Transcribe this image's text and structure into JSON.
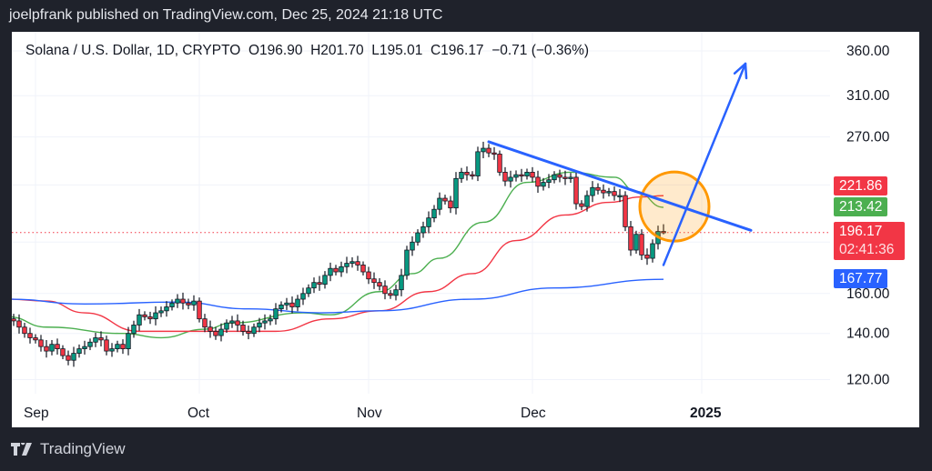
{
  "header": {
    "published": "joelpfrank published on TradingView.com, Dec 25, 2024 21:18 UTC"
  },
  "legend": {
    "symbol": "Solana / U.S. Dollar, 1D, CRYPTO",
    "open": "O196.90",
    "high": "H201.70",
    "low": "L195.01",
    "close": "C196.17",
    "change": "−0.71 (−0.36%)"
  },
  "footer": {
    "brand": "TradingView",
    "logo_icon": "tradingview-logo-icon"
  },
  "chart_data": {
    "type": "candlestick",
    "title": "Solana / U.S. Dollar, 1D, CRYPTO",
    "y_scale": "log",
    "ylim": [
      102,
      414
    ],
    "grid": true,
    "y_ticks": [
      360,
      310,
      270,
      230,
      190,
      160,
      140,
      120
    ],
    "y_tick_labels": [
      "360.00",
      "310.00",
      "270.00",
      "",
      "",
      "160.00",
      "140.00",
      "120.00"
    ],
    "x_ticks": [
      {
        "date": "2024-09-01",
        "label": "Sep"
      },
      {
        "date": "2024-10-01",
        "label": "Oct"
      },
      {
        "date": "2024-11-01",
        "label": "Nov"
      },
      {
        "date": "2024-12-01",
        "label": "Dec"
      },
      {
        "date": "2025-01-01",
        "label": "2025"
      }
    ],
    "colors": {
      "up": "#089981",
      "down": "#f23645",
      "ma_fast": "#4caf50",
      "ma_mid": "#f23645",
      "ma_slow": "#2962ff",
      "drawing": "#2962ff",
      "highlight": "#ff9800"
    },
    "closes": [
      [
        "2024-08-27",
        147
      ],
      [
        "2024-08-28",
        146
      ],
      [
        "2024-08-29",
        143
      ],
      [
        "2024-08-30",
        140
      ],
      [
        "2024-08-31",
        138
      ],
      [
        "2024-09-01",
        137
      ],
      [
        "2024-09-02",
        134
      ],
      [
        "2024-09-03",
        132
      ],
      [
        "2024-09-04",
        135
      ],
      [
        "2024-09-05",
        133
      ],
      [
        "2024-09-06",
        130
      ],
      [
        "2024-09-07",
        128
      ],
      [
        "2024-09-08",
        131
      ],
      [
        "2024-09-09",
        133
      ],
      [
        "2024-09-10",
        134
      ],
      [
        "2024-09-11",
        136
      ],
      [
        "2024-09-12",
        138
      ],
      [
        "2024-09-13",
        137
      ],
      [
        "2024-09-14",
        132
      ],
      [
        "2024-09-15",
        133
      ],
      [
        "2024-09-16",
        135
      ],
      [
        "2024-09-17",
        133
      ],
      [
        "2024-09-18",
        140
      ],
      [
        "2024-09-19",
        144
      ],
      [
        "2024-09-20",
        149
      ],
      [
        "2024-09-21",
        148
      ],
      [
        "2024-09-22",
        147
      ],
      [
        "2024-09-23",
        150
      ],
      [
        "2024-09-24",
        151
      ],
      [
        "2024-09-25",
        153
      ],
      [
        "2024-09-26",
        155
      ],
      [
        "2024-09-27",
        157
      ],
      [
        "2024-09-28",
        155
      ],
      [
        "2024-09-29",
        154
      ],
      [
        "2024-09-30",
        156
      ],
      [
        "2024-10-01",
        147
      ],
      [
        "2024-10-02",
        143
      ],
      [
        "2024-10-03",
        141
      ],
      [
        "2024-10-04",
        139
      ],
      [
        "2024-10-05",
        142
      ],
      [
        "2024-10-06",
        145
      ],
      [
        "2024-10-07",
        146
      ],
      [
        "2024-10-08",
        144
      ],
      [
        "2024-10-09",
        141
      ],
      [
        "2024-10-10",
        140
      ],
      [
        "2024-10-11",
        143
      ],
      [
        "2024-10-12",
        145
      ],
      [
        "2024-10-13",
        146
      ],
      [
        "2024-10-14",
        147
      ],
      [
        "2024-10-15",
        152
      ],
      [
        "2024-10-16",
        154
      ],
      [
        "2024-10-17",
        155
      ],
      [
        "2024-10-18",
        153
      ],
      [
        "2024-10-19",
        157
      ],
      [
        "2024-10-20",
        160
      ],
      [
        "2024-10-21",
        163
      ],
      [
        "2024-10-22",
        166
      ],
      [
        "2024-10-23",
        165
      ],
      [
        "2024-10-24",
        170
      ],
      [
        "2024-10-25",
        174
      ],
      [
        "2024-10-26",
        172
      ],
      [
        "2024-10-27",
        175
      ],
      [
        "2024-10-28",
        177
      ],
      [
        "2024-10-29",
        178
      ],
      [
        "2024-10-30",
        176
      ],
      [
        "2024-10-31",
        172
      ],
      [
        "2024-11-01",
        168
      ],
      [
        "2024-11-02",
        166
      ],
      [
        "2024-11-03",
        164
      ],
      [
        "2024-11-04",
        160
      ],
      [
        "2024-11-05",
        159
      ],
      [
        "2024-11-06",
        162
      ],
      [
        "2024-11-07",
        170
      ],
      [
        "2024-11-08",
        185
      ],
      [
        "2024-11-09",
        190
      ],
      [
        "2024-11-10",
        196
      ],
      [
        "2024-11-11",
        200
      ],
      [
        "2024-11-12",
        206
      ],
      [
        "2024-11-13",
        212
      ],
      [
        "2024-11-14",
        220
      ],
      [
        "2024-11-15",
        218
      ],
      [
        "2024-11-16",
        213
      ],
      [
        "2024-11-17",
        235
      ],
      [
        "2024-11-18",
        240
      ],
      [
        "2024-11-19",
        238
      ],
      [
        "2024-11-20",
        237
      ],
      [
        "2024-11-21",
        257
      ],
      [
        "2024-11-22",
        260
      ],
      [
        "2024-11-23",
        256
      ],
      [
        "2024-11-24",
        255
      ],
      [
        "2024-11-25",
        240
      ],
      [
        "2024-11-26",
        233
      ],
      [
        "2024-11-27",
        236
      ],
      [
        "2024-11-28",
        238
      ],
      [
        "2024-11-29",
        237
      ],
      [
        "2024-11-30",
        240
      ],
      [
        "2024-12-01",
        236
      ],
      [
        "2024-12-02",
        229
      ],
      [
        "2024-12-03",
        232
      ],
      [
        "2024-12-04",
        234
      ],
      [
        "2024-12-05",
        238
      ],
      [
        "2024-12-06",
        236
      ],
      [
        "2024-12-07",
        235
      ],
      [
        "2024-12-08",
        236
      ],
      [
        "2024-12-09",
        216
      ],
      [
        "2024-12-10",
        214
      ],
      [
        "2024-12-11",
        222
      ],
      [
        "2024-12-12",
        228
      ],
      [
        "2024-12-13",
        226
      ],
      [
        "2024-12-14",
        224
      ],
      [
        "2024-12-15",
        225
      ],
      [
        "2024-12-16",
        222
      ],
      [
        "2024-12-17",
        222
      ],
      [
        "2024-12-18",
        200
      ],
      [
        "2024-12-19",
        185
      ],
      [
        "2024-12-20",
        195
      ],
      [
        "2024-12-21",
        182
      ],
      [
        "2024-12-22",
        180
      ],
      [
        "2024-12-23",
        189
      ],
      [
        "2024-12-24",
        196.9
      ],
      [
        "2024-12-25",
        196.17
      ]
    ],
    "last_candle": {
      "date": "2024-12-25",
      "open": 196.9,
      "high": 201.7,
      "low": 195.01,
      "close": 196.17
    },
    "moving_averages": [
      {
        "color": "#4caf50",
        "last": 213.42,
        "points": [
          [
            "2024-08-27",
            148
          ],
          [
            "2024-09-03",
            143
          ],
          [
            "2024-09-17",
            140
          ],
          [
            "2024-09-24",
            138
          ],
          [
            "2024-10-02",
            142
          ],
          [
            "2024-10-07",
            145
          ],
          [
            "2024-10-20",
            150
          ],
          [
            "2024-10-25",
            149
          ],
          [
            "2024-11-03",
            161
          ],
          [
            "2024-11-09",
            171
          ],
          [
            "2024-11-14",
            180
          ],
          [
            "2024-11-22",
            203
          ],
          [
            "2024-11-30",
            232
          ],
          [
            "2024-12-08",
            240
          ],
          [
            "2024-12-16",
            236
          ],
          [
            "2024-12-20",
            225
          ],
          [
            "2024-12-25",
            213.42
          ]
        ]
      },
      {
        "color": "#f23645",
        "last": 221.86,
        "points": [
          [
            "2024-08-27",
            157
          ],
          [
            "2024-09-03",
            156
          ],
          [
            "2024-09-10",
            150
          ],
          [
            "2024-09-20",
            141
          ],
          [
            "2024-10-01",
            141
          ],
          [
            "2024-10-15",
            141
          ],
          [
            "2024-10-25",
            147
          ],
          [
            "2024-11-03",
            151
          ],
          [
            "2024-11-12",
            161
          ],
          [
            "2024-11-20",
            171
          ],
          [
            "2024-11-28",
            191
          ],
          [
            "2024-12-07",
            208
          ],
          [
            "2024-12-15",
            217
          ],
          [
            "2024-12-21",
            221
          ],
          [
            "2024-12-25",
            221.86
          ]
        ]
      },
      {
        "color": "#2962ff",
        "last": 167.77,
        "points": [
          [
            "2024-08-27",
            157
          ],
          [
            "2024-09-10",
            154.5
          ],
          [
            "2024-09-27",
            155.5
          ],
          [
            "2024-10-10",
            152
          ],
          [
            "2024-10-23",
            150
          ],
          [
            "2024-11-03",
            151
          ],
          [
            "2024-11-20",
            157
          ],
          [
            "2024-12-05",
            163
          ],
          [
            "2024-12-25",
            167.77
          ]
        ]
      }
    ],
    "price_labels": [
      {
        "value": "221.86",
        "color": "#f23645"
      },
      {
        "value": "213.42",
        "color": "#4caf50"
      },
      {
        "value": "196.17",
        "countdown": "02:41:36",
        "color": "#f23645"
      },
      {
        "value": "167.77",
        "color": "#2962ff"
      }
    ],
    "drawings": {
      "trendline": {
        "from": [
          "2024-11-23",
          265.7
        ],
        "to": [
          "2025-01-10",
          197.6
        ]
      },
      "arrow": {
        "from": [
          "2024-12-25",
          176
        ],
        "to": [
          "2025-01-09",
          345
        ]
      },
      "highlight_circle": {
        "center": [
          "2024-12-27",
          214
        ]
      }
    }
  }
}
